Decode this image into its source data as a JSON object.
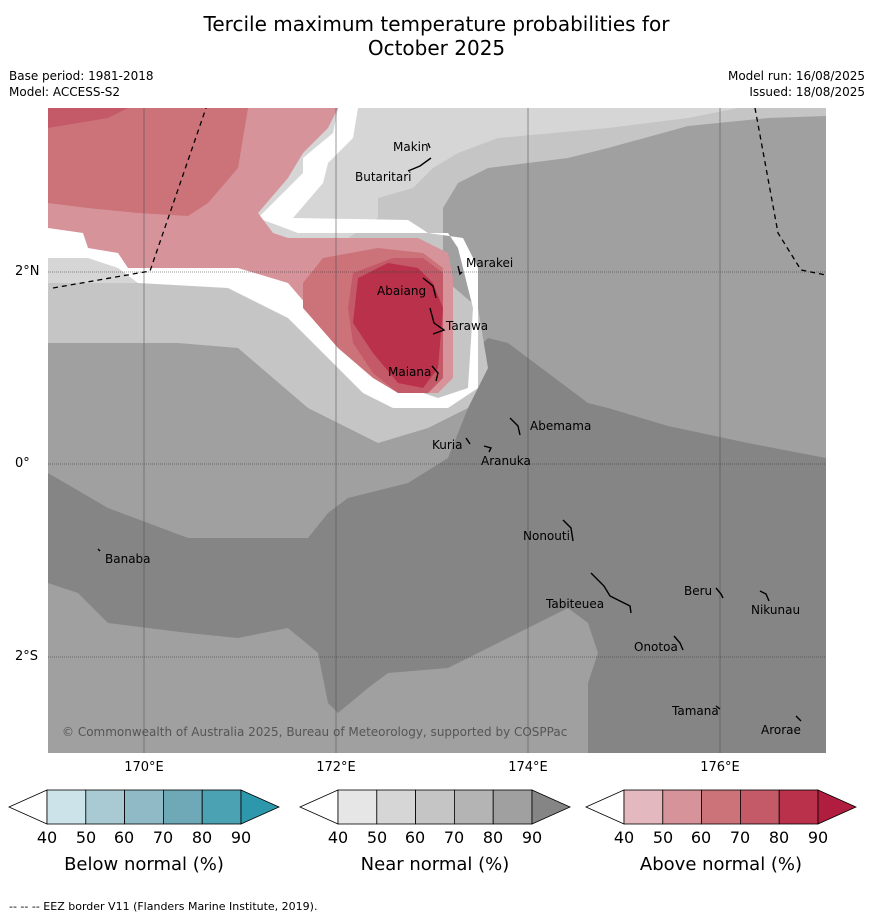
{
  "title_line1": "Tercile maximum temperature probabilities for",
  "title_line2": "October 2025",
  "meta": {
    "base_period": "Base period: 1981-2018",
    "model": "Model: ACCESS-S2",
    "model_run": "Model run: 16/08/2025",
    "issued": "Issued: 18/08/2025"
  },
  "lat_ticks": [
    "2°N",
    "0°",
    "2°S"
  ],
  "lon_ticks": [
    "170°E",
    "172°E",
    "174°E",
    "176°E"
  ],
  "places": [
    "Makin",
    "Butaritari",
    "Marakei",
    "Abaiang",
    "Tarawa",
    "Maiana",
    "Abemama",
    "Kuria",
    "Aranuka",
    "Nonouti",
    "Banaba",
    "Beru",
    "Nikunau",
    "Tabiteuea",
    "Onotoa",
    "Tamana",
    "Arorae"
  ],
  "copyright": "© Commonwealth of Australia 2025, Bureau of Meteorology, supported by COSPPac",
  "colorbars": [
    {
      "title": "Below normal (%)",
      "ticks": [
        "40",
        "50",
        "60",
        "70",
        "80",
        "90"
      ],
      "colors": [
        "#ffffff",
        "#cde3ea",
        "#a9cad2",
        "#8fbac6",
        "#6fa9b8",
        "#4aa2b3",
        "#2d97ac"
      ]
    },
    {
      "title": "Near normal (%)",
      "ticks": [
        "40",
        "50",
        "60",
        "70",
        "80",
        "90"
      ],
      "colors": [
        "#ffffff",
        "#e6e6e6",
        "#d6d6d6",
        "#c5c5c5",
        "#b4b4b4",
        "#a0a0a0",
        "#858585"
      ]
    },
    {
      "title": "Above normal (%)",
      "ticks": [
        "40",
        "50",
        "60",
        "70",
        "80",
        "90"
      ],
      "colors": [
        "#ffffff",
        "#e3b8be",
        "#d6939a",
        "#cc7279",
        "#c45a68",
        "#b9314b",
        "#b01d3e"
      ]
    }
  ],
  "footnote": "--  --  -- EEZ border V11 (Flanders Marine Institute, 2019)."
}
